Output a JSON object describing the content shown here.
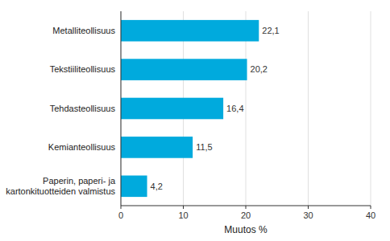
{
  "chart_data": {
    "type": "bar",
    "orientation": "horizontal",
    "categories": [
      "Paperin, paperi- ja kartonkituotteiden valmistus",
      "Kemianteollisuus",
      "Tehdasteollisuus",
      "Tekstiiliteollisuus",
      "Metalliteollisuus"
    ],
    "values": [
      4.2,
      11.5,
      16.4,
      20.2,
      22.1
    ],
    "value_labels": [
      "4,2",
      "11,5",
      "16,4",
      "20,2",
      "22,1"
    ],
    "data_labels": true,
    "color": "#00aadd",
    "xlabel": "Muutos %",
    "xlim": [
      0,
      40
    ],
    "xticks": [
      0,
      10,
      20,
      30,
      40
    ],
    "grid": true
  }
}
